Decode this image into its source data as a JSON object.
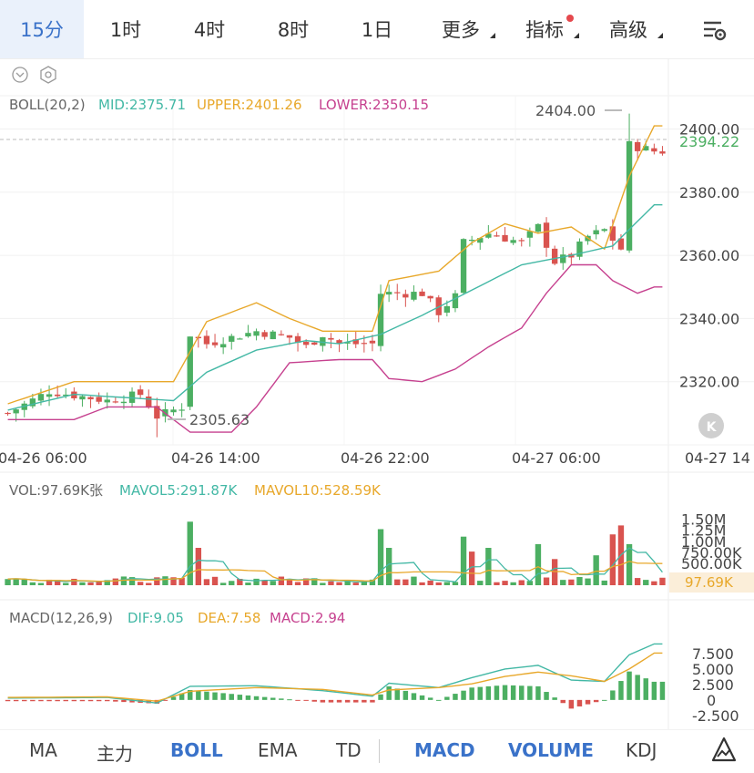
{
  "tabs": [
    {
      "label": "15分",
      "active": true
    },
    {
      "label": "1时"
    },
    {
      "label": "4时"
    },
    {
      "label": "8时"
    },
    {
      "label": "1日"
    },
    {
      "label": "更多",
      "dropdown": true
    },
    {
      "label": "指标",
      "dropdown": true,
      "badge": true
    },
    {
      "label": "高级",
      "dropdown": true
    }
  ],
  "settings_icon": "chart-settings-icon",
  "boll": {
    "label": "BOLL(20,2)",
    "mid": "MID:2375.71",
    "upper": "UPPER:2401.26",
    "lower": "LOWER:2350.15"
  },
  "vol": {
    "label": "VOL:97.69K张",
    "mavol5": "MAVOL5:291.87K",
    "mavol10": "MAVOL10:528.59K",
    "last_tag": "97.69K"
  },
  "macd": {
    "label": "MACD(12,26,9)",
    "dif": "DIF:9.05",
    "dea": "DEA:7.58",
    "macd": "MACD:2.94"
  },
  "price_axis": [
    "2400.00",
    "2380.00",
    "2360.00",
    "2340.00",
    "2320.00"
  ],
  "last_price": "2394.22",
  "high_mark": "2404.00",
  "low_mark": "2305.63",
  "time_axis": [
    "04-26 06:00",
    "04-26 14:00",
    "04-26 22:00",
    "04-27 06:00",
    "04-27 14"
  ],
  "vol_axis": [
    "1.50M",
    "1.25M",
    "1.00M",
    "750.00K",
    "500.00K"
  ],
  "macd_axis": [
    "7.500",
    "5.000",
    "2.500",
    "0",
    "-2.500"
  ],
  "bottom_bar": [
    {
      "label": "MA"
    },
    {
      "label": "主力"
    },
    {
      "label": "BOLL",
      "on": true
    },
    {
      "label": "EMA"
    },
    {
      "label": "TD"
    },
    {
      "label": "MACD",
      "on": true
    },
    {
      "label": "VOLUME",
      "on": true
    },
    {
      "label": "KDJ"
    }
  ],
  "colors": {
    "up": "#4caf62",
    "down": "#d9534f",
    "mid": "#43b8a5",
    "upper": "#e8a82b",
    "lower": "#c6418f",
    "accent": "#3a72c9"
  },
  "chart_data": {
    "type": "candlestick",
    "price_ylim": [
      2300,
      2412
    ],
    "x_ticks": [
      "04-26 06:00",
      "04-26 14:00",
      "04-26 22:00",
      "04-27 06:00",
      "04-27 14"
    ],
    "close_anchors": [
      [
        0,
        2310
      ],
      [
        5,
        2317
      ],
      [
        12,
        2314
      ],
      [
        16,
        2316
      ],
      [
        18,
        2309
      ],
      [
        21,
        2312
      ],
      [
        22,
        2335
      ],
      [
        24,
        2332
      ],
      [
        30,
        2336
      ],
      [
        34,
        2334
      ],
      [
        36,
        2331
      ],
      [
        38,
        2335
      ],
      [
        40,
        2332
      ],
      [
        44,
        2332
      ],
      [
        45,
        2348
      ],
      [
        50,
        2348
      ],
      [
        52,
        2342
      ],
      [
        54,
        2347
      ],
      [
        55,
        2364
      ],
      [
        58,
        2367
      ],
      [
        62,
        2364
      ],
      [
        64,
        2369
      ],
      [
        66,
        2358
      ],
      [
        68,
        2360
      ],
      [
        70,
        2366
      ],
      [
        72,
        2368
      ],
      [
        74,
        2362
      ],
      [
        75,
        2395
      ],
      [
        78,
        2393
      ]
    ],
    "boll_mid_anchors": [
      [
        0,
        2311
      ],
      [
        8,
        2316
      ],
      [
        14,
        2315
      ],
      [
        20,
        2314
      ],
      [
        24,
        2323
      ],
      [
        30,
        2330
      ],
      [
        36,
        2333
      ],
      [
        40,
        2332
      ],
      [
        45,
        2335
      ],
      [
        50,
        2341
      ],
      [
        56,
        2349
      ],
      [
        62,
        2357
      ],
      [
        68,
        2360
      ],
      [
        73,
        2363
      ],
      [
        78,
        2376
      ]
    ],
    "boll_upper_anchors": [
      [
        0,
        2313
      ],
      [
        8,
        2320
      ],
      [
        14,
        2320
      ],
      [
        20,
        2320
      ],
      [
        24,
        2339
      ],
      [
        30,
        2345
      ],
      [
        34,
        2340
      ],
      [
        38,
        2336
      ],
      [
        44,
        2336
      ],
      [
        46,
        2352
      ],
      [
        52,
        2355
      ],
      [
        56,
        2364
      ],
      [
        60,
        2370
      ],
      [
        64,
        2367
      ],
      [
        68,
        2369
      ],
      [
        72,
        2362
      ],
      [
        75,
        2385
      ],
      [
        78,
        2401
      ]
    ],
    "boll_lower_anchors": [
      [
        0,
        2308
      ],
      [
        8,
        2308
      ],
      [
        12,
        2312
      ],
      [
        18,
        2312
      ],
      [
        22,
        2304
      ],
      [
        27,
        2304
      ],
      [
        30,
        2312
      ],
      [
        34,
        2326
      ],
      [
        40,
        2327
      ],
      [
        44,
        2327
      ],
      [
        46,
        2321
      ],
      [
        50,
        2320
      ],
      [
        54,
        2324
      ],
      [
        58,
        2331
      ],
      [
        62,
        2337
      ],
      [
        65,
        2348
      ],
      [
        68,
        2357
      ],
      [
        71,
        2357
      ],
      [
        73,
        2352
      ],
      [
        76,
        2348
      ],
      [
        78,
        2350
      ]
    ],
    "volume_ylim": [
      0,
      1700000
    ],
    "volume_spikes": {
      "22": 0.85,
      "23": 0.5,
      "45": 0.75,
      "46": 0.5,
      "55": 0.65,
      "56": 0.45,
      "58": 0.5,
      "64": 0.55,
      "66": 0.35,
      "71": 0.4,
      "73": 0.68,
      "74": 0.8,
      "75": 0.55
    },
    "macd_ylim": [
      -4,
      10
    ],
    "dif_anchors": [
      [
        0,
        0.3
      ],
      [
        12,
        0.4
      ],
      [
        18,
        -0.5
      ],
      [
        22,
        2.2
      ],
      [
        30,
        2.3
      ],
      [
        38,
        1.5
      ],
      [
        44,
        0.6
      ],
      [
        46,
        2.7
      ],
      [
        52,
        2.0
      ],
      [
        56,
        3.6
      ],
      [
        60,
        5.0
      ],
      [
        64,
        5.6
      ],
      [
        68,
        3.2
      ],
      [
        72,
        3.0
      ],
      [
        75,
        7.3
      ],
      [
        78,
        9.05
      ]
    ],
    "dea_anchors": [
      [
        0,
        0.4
      ],
      [
        12,
        0.5
      ],
      [
        18,
        -0.2
      ],
      [
        22,
        1.4
      ],
      [
        30,
        2.0
      ],
      [
        38,
        1.7
      ],
      [
        44,
        0.8
      ],
      [
        46,
        1.6
      ],
      [
        52,
        2.0
      ],
      [
        56,
        2.6
      ],
      [
        60,
        3.8
      ],
      [
        64,
        4.5
      ],
      [
        68,
        3.9
      ],
      [
        72,
        3.0
      ],
      [
        75,
        5.0
      ],
      [
        78,
        7.58
      ]
    ],
    "candles": 80
  }
}
